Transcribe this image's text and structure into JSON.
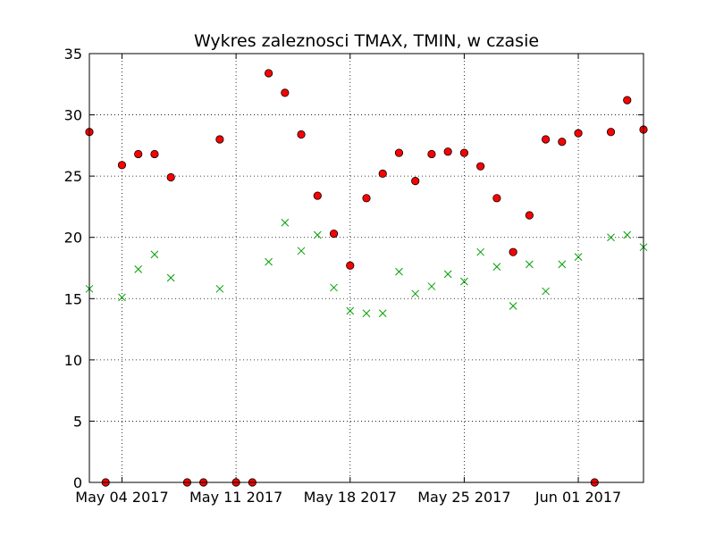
{
  "chart_data": {
    "type": "scatter",
    "title": "Wykres zaleznosci TMAX, TMIN, w czasie",
    "xlabel": "",
    "ylabel": "",
    "x_start": "2017-05-02",
    "x_end": "2017-06-05",
    "xlim": [
      "2017-05-02",
      "2017-06-05"
    ],
    "ylim": [
      0,
      35
    ],
    "yticks": [
      0,
      5,
      10,
      15,
      20,
      25,
      30,
      35
    ],
    "xticks": [
      {
        "date": "2017-05-04",
        "label": "May 04 2017"
      },
      {
        "date": "2017-05-11",
        "label": "May 11 2017"
      },
      {
        "date": "2017-05-18",
        "label": "May 18 2017"
      },
      {
        "date": "2017-05-25",
        "label": "May 25 2017"
      },
      {
        "date": "2017-06-01",
        "label": "Jun 01 2017"
      }
    ],
    "grid": true,
    "series": [
      {
        "marker": "circle",
        "color": "#ff0000",
        "points": [
          {
            "date": "2017-05-02",
            "value": 28.6
          },
          {
            "date": "2017-05-03",
            "value": 0
          },
          {
            "date": "2017-05-04",
            "value": 25.9
          },
          {
            "date": "2017-05-05",
            "value": 26.8
          },
          {
            "date": "2017-05-06",
            "value": 26.8
          },
          {
            "date": "2017-05-07",
            "value": 24.9
          },
          {
            "date": "2017-05-08",
            "value": 0
          },
          {
            "date": "2017-05-09",
            "value": 0
          },
          {
            "date": "2017-05-10",
            "value": 28.0
          },
          {
            "date": "2017-05-11",
            "value": 0
          },
          {
            "date": "2017-05-12",
            "value": 0
          },
          {
            "date": "2017-05-13",
            "value": 33.4
          },
          {
            "date": "2017-05-14",
            "value": 31.8
          },
          {
            "date": "2017-05-15",
            "value": 28.4
          },
          {
            "date": "2017-05-16",
            "value": 23.4
          },
          {
            "date": "2017-05-17",
            "value": 20.3
          },
          {
            "date": "2017-05-18",
            "value": 17.7
          },
          {
            "date": "2017-05-19",
            "value": 23.2
          },
          {
            "date": "2017-05-20",
            "value": 25.2
          },
          {
            "date": "2017-05-21",
            "value": 26.9
          },
          {
            "date": "2017-05-22",
            "value": 24.6
          },
          {
            "date": "2017-05-23",
            "value": 26.8
          },
          {
            "date": "2017-05-24",
            "value": 27.0
          },
          {
            "date": "2017-05-25",
            "value": 26.9
          },
          {
            "date": "2017-05-26",
            "value": 25.8
          },
          {
            "date": "2017-05-27",
            "value": 23.2
          },
          {
            "date": "2017-05-28",
            "value": 18.8
          },
          {
            "date": "2017-05-29",
            "value": 21.8
          },
          {
            "date": "2017-05-30",
            "value": 28.0
          },
          {
            "date": "2017-05-31",
            "value": 27.8
          },
          {
            "date": "2017-06-01",
            "value": 28.5
          },
          {
            "date": "2017-06-02",
            "value": 0
          },
          {
            "date": "2017-06-03",
            "value": 28.6
          },
          {
            "date": "2017-06-04",
            "value": 31.2
          },
          {
            "date": "2017-06-05",
            "value": 28.8
          }
        ]
      },
      {
        "marker": "x",
        "color": "#00a000",
        "points": [
          {
            "date": "2017-05-02",
            "value": 15.8
          },
          {
            "date": "2017-05-04",
            "value": 15.1
          },
          {
            "date": "2017-05-05",
            "value": 17.4
          },
          {
            "date": "2017-05-06",
            "value": 18.6
          },
          {
            "date": "2017-05-07",
            "value": 16.7
          },
          {
            "date": "2017-05-10",
            "value": 15.8
          },
          {
            "date": "2017-05-13",
            "value": 18.0
          },
          {
            "date": "2017-05-14",
            "value": 21.2
          },
          {
            "date": "2017-05-15",
            "value": 18.9
          },
          {
            "date": "2017-05-16",
            "value": 20.2
          },
          {
            "date": "2017-05-17",
            "value": 15.9
          },
          {
            "date": "2017-05-18",
            "value": 14.0
          },
          {
            "date": "2017-05-19",
            "value": 13.8
          },
          {
            "date": "2017-05-20",
            "value": 13.8
          },
          {
            "date": "2017-05-21",
            "value": 17.2
          },
          {
            "date": "2017-05-22",
            "value": 15.4
          },
          {
            "date": "2017-05-23",
            "value": 16.0
          },
          {
            "date": "2017-05-24",
            "value": 17.0
          },
          {
            "date": "2017-05-25",
            "value": 16.4
          },
          {
            "date": "2017-05-26",
            "value": 18.8
          },
          {
            "date": "2017-05-27",
            "value": 17.6
          },
          {
            "date": "2017-05-28",
            "value": 14.4
          },
          {
            "date": "2017-05-29",
            "value": 17.8
          },
          {
            "date": "2017-05-30",
            "value": 15.6
          },
          {
            "date": "2017-05-31",
            "value": 17.8
          },
          {
            "date": "2017-06-01",
            "value": 18.4
          },
          {
            "date": "2017-06-03",
            "value": 20.0
          },
          {
            "date": "2017-06-04",
            "value": 20.2
          },
          {
            "date": "2017-06-05",
            "value": 19.2
          }
        ]
      }
    ]
  }
}
